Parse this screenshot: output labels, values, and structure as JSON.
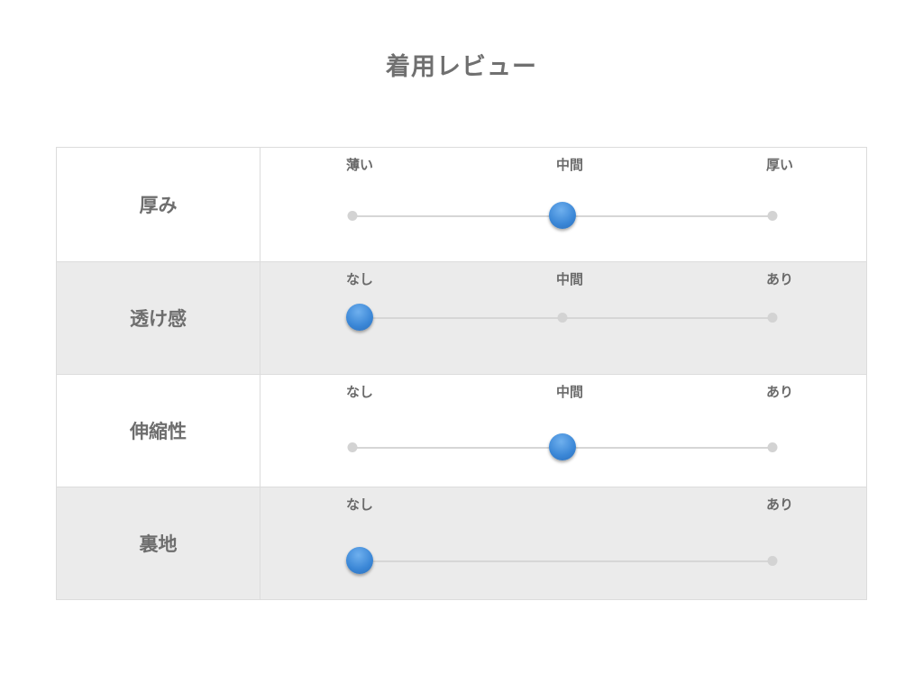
{
  "title": "着用レビュー",
  "knob_color": "#3a86d6",
  "rows": [
    {
      "label": "厚み",
      "scale": [
        "薄い",
        "中間",
        "厚い"
      ],
      "value": 0.5
    },
    {
      "label": "透け感",
      "scale": [
        "なし",
        "中間",
        "あり"
      ],
      "value": 0
    },
    {
      "label": "伸縮性",
      "scale": [
        "なし",
        "中間",
        "あり"
      ],
      "value": 0.5
    },
    {
      "label": "裏地",
      "scale": [
        "なし",
        "あり"
      ],
      "value": 0
    }
  ]
}
